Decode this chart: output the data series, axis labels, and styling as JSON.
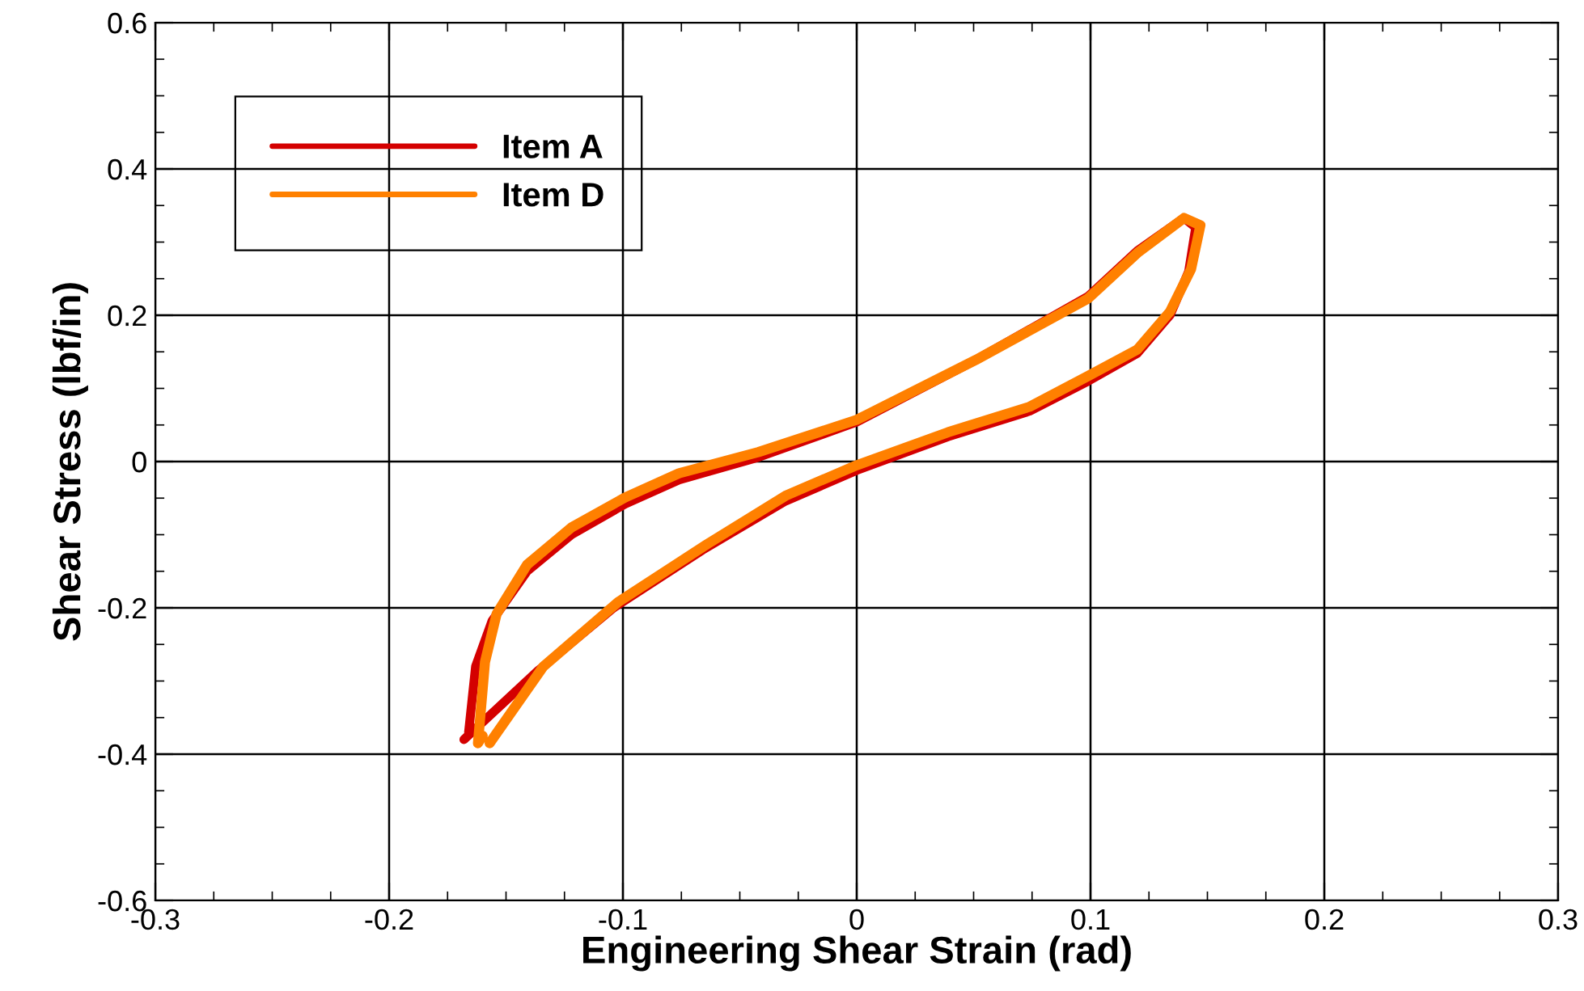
{
  "chart_data": {
    "type": "line",
    "xlabel": "Engineering Shear Strain (rad)",
    "ylabel": "Shear Stress (lbf/in)",
    "xlim": [
      -0.3,
      0.3
    ],
    "xticks": [
      -0.3,
      -0.2,
      -0.1,
      0,
      0.1,
      0.2,
      0.3
    ],
    "ylim": [
      -0.6,
      0.6
    ],
    "yticks": [
      -0.6,
      -0.4,
      -0.2,
      0,
      0.2,
      0.4,
      0.6
    ],
    "grid": true,
    "legend": "top left",
    "marker": "none",
    "line_style": "solid",
    "series": [
      {
        "name": "Item A",
        "color": "#d40000",
        "x": [
          -0.168,
          -0.136,
          -0.104,
          -0.066,
          -0.031,
          0,
          0.039,
          0.074,
          0.099,
          0.12,
          0.134,
          0.142,
          0.145,
          0.14,
          0.12,
          0.099,
          0.051,
          0,
          -0.042,
          -0.076,
          -0.099,
          -0.122,
          -0.141,
          -0.156,
          -0.163,
          -0.166
        ],
        "values": [
          -0.38,
          -0.285,
          -0.2,
          -0.121,
          -0.055,
          -0.012,
          0.034,
          0.069,
          0.11,
          0.148,
          0.2,
          0.26,
          0.32,
          0.333,
          0.288,
          0.226,
          0.139,
          0.054,
          0.006,
          -0.025,
          -0.058,
          -0.1,
          -0.15,
          -0.218,
          -0.28,
          -0.37
        ]
      },
      {
        "name": "Item D",
        "color": "#ff8000",
        "x": [
          -0.157,
          -0.134,
          -0.102,
          -0.064,
          -0.03,
          0,
          0.039,
          0.074,
          0.099,
          0.12,
          0.134,
          0.143,
          0.147,
          0.14,
          0.12,
          0.099,
          0.051,
          0,
          -0.042,
          -0.076,
          -0.099,
          -0.122,
          -0.141,
          -0.154,
          -0.159,
          -0.162,
          -0.16
        ],
        "values": [
          -0.385,
          -0.28,
          -0.192,
          -0.113,
          -0.046,
          -0.005,
          0.04,
          0.075,
          0.117,
          0.153,
          0.205,
          0.263,
          0.323,
          0.333,
          0.285,
          0.223,
          0.139,
          0.057,
          0.013,
          -0.016,
          -0.049,
          -0.09,
          -0.141,
          -0.208,
          -0.274,
          -0.385,
          -0.375
        ]
      }
    ]
  }
}
